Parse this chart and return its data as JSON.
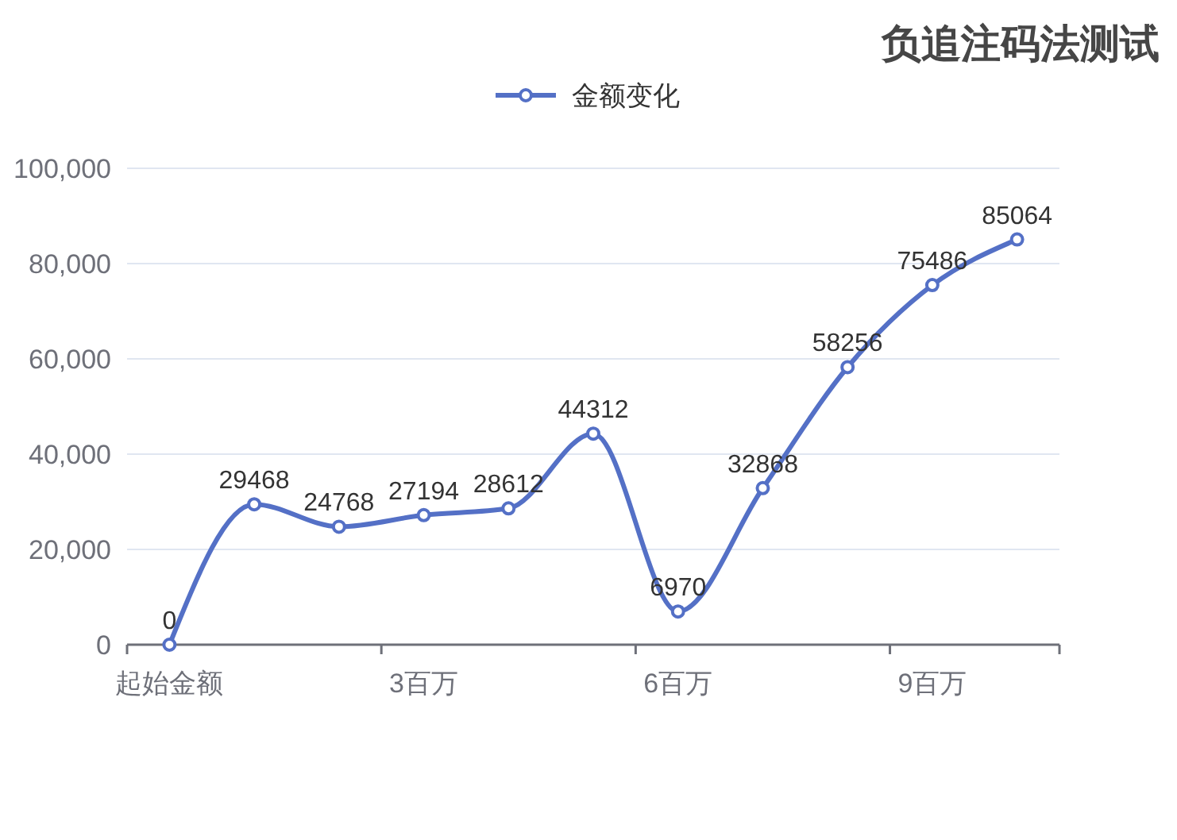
{
  "chart_data": {
    "type": "line",
    "title": "负追注码法测试",
    "categories": [
      "起始金额",
      null,
      null,
      "3百万",
      null,
      null,
      "6百万",
      null,
      null,
      "9百万",
      null
    ],
    "series": [
      {
        "name": "金额变化",
        "color": "#5470c6",
        "values": [
          0,
          29468,
          24768,
          27194,
          28612,
          44312,
          6970,
          32868,
          58256,
          75486,
          85064
        ]
      }
    ],
    "ylim": [
      0,
      100000
    ],
    "yticks": [
      0,
      {
        "value": 20000,
        "label": "20,000"
      },
      {
        "value": 40000,
        "label": "40,000"
      },
      {
        "value": 60000,
        "label": "60,000"
      },
      {
        "value": 80000,
        "label": "80,000"
      },
      {
        "value": 100000,
        "label": "100,000"
      }
    ],
    "grid": "y",
    "legend": "top",
    "marker": "circle",
    "line_style": "solid",
    "data_labels": true
  }
}
